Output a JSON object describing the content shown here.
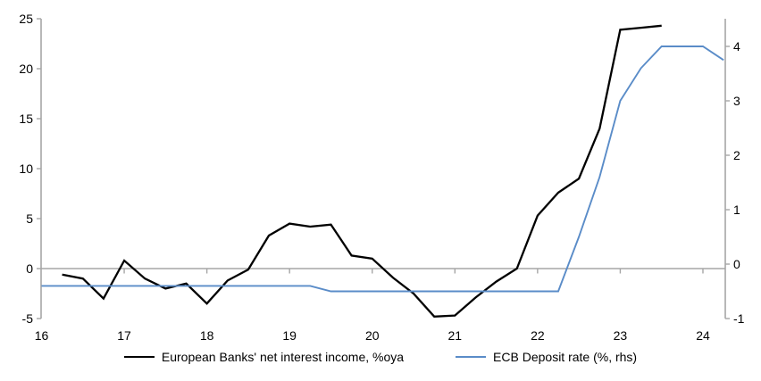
{
  "chart_data": {
    "type": "line",
    "title": "",
    "grid": false,
    "legend_position": "bottom-center",
    "x_axis": {
      "tick_labels": [
        "16",
        "17",
        "18",
        "19",
        "20",
        "21",
        "22",
        "23",
        "24"
      ],
      "tick_values": [
        16,
        17,
        18,
        19,
        20,
        21,
        22,
        23,
        24
      ],
      "range": [
        16,
        24.27
      ]
    },
    "y_axis_left": {
      "tick_labels": [
        "-5",
        "0",
        "5",
        "10",
        "15",
        "20",
        "25"
      ],
      "tick_values": [
        -5,
        0,
        5,
        10,
        15,
        20,
        25
      ],
      "range": [
        -5,
        25
      ],
      "zero_line": true
    },
    "y_axis_right": {
      "tick_labels": [
        "-1",
        "0",
        "1",
        "2",
        "3",
        "4"
      ],
      "tick_values": [
        -1,
        0,
        1,
        2,
        3,
        4
      ],
      "range": [
        -1,
        4.5
      ]
    },
    "series": [
      {
        "name": "European Banks' net interest income, %oya",
        "axis": "left",
        "color": "#000000",
        "x": [
          16.25,
          16.5,
          16.75,
          17,
          17.25,
          17.5,
          17.75,
          18,
          18.25,
          18.5,
          18.75,
          19,
          19.25,
          19.5,
          19.75,
          20,
          20.25,
          20.5,
          20.75,
          21,
          21.25,
          21.5,
          21.75,
          22,
          22.25,
          22.5,
          22.75,
          23,
          23.25,
          23.5
        ],
        "y": [
          -0.6,
          -1.0,
          -3.0,
          0.8,
          -1.0,
          -2.0,
          -1.5,
          -3.5,
          -1.2,
          -0.1,
          3.3,
          4.5,
          4.2,
          4.4,
          1.3,
          1.0,
          -0.9,
          -2.5,
          -4.8,
          -4.7,
          -2.9,
          -1.3,
          0.0,
          5.3,
          7.6,
          9.0,
          14.0,
          23.9,
          24.1,
          24.3
        ]
      },
      {
        "name": "ECB Deposit rate (%, rhs)",
        "axis": "right",
        "color": "#5a8cc8",
        "x": [
          16.0,
          19.25,
          19.5,
          22.25,
          22.5,
          22.75,
          23.0,
          23.25,
          23.5,
          24.0,
          24.25
        ],
        "y": [
          -0.4,
          -0.4,
          -0.5,
          -0.5,
          0.5,
          1.6,
          3.0,
          3.6,
          4.0,
          4.0,
          3.75
        ]
      }
    ]
  },
  "colors": {
    "background": "#ffffff",
    "axis": "#a6a6a6",
    "zero_line": "#a6a6a6",
    "text": "#000000",
    "series_1": "#000000",
    "series_2": "#5a8cc8"
  },
  "legend": {
    "items": [
      {
        "label": "European Banks' net interest income, %oya",
        "color": "#000000"
      },
      {
        "label": "ECB Deposit rate (%, rhs)",
        "color": "#5a8cc8"
      }
    ]
  }
}
